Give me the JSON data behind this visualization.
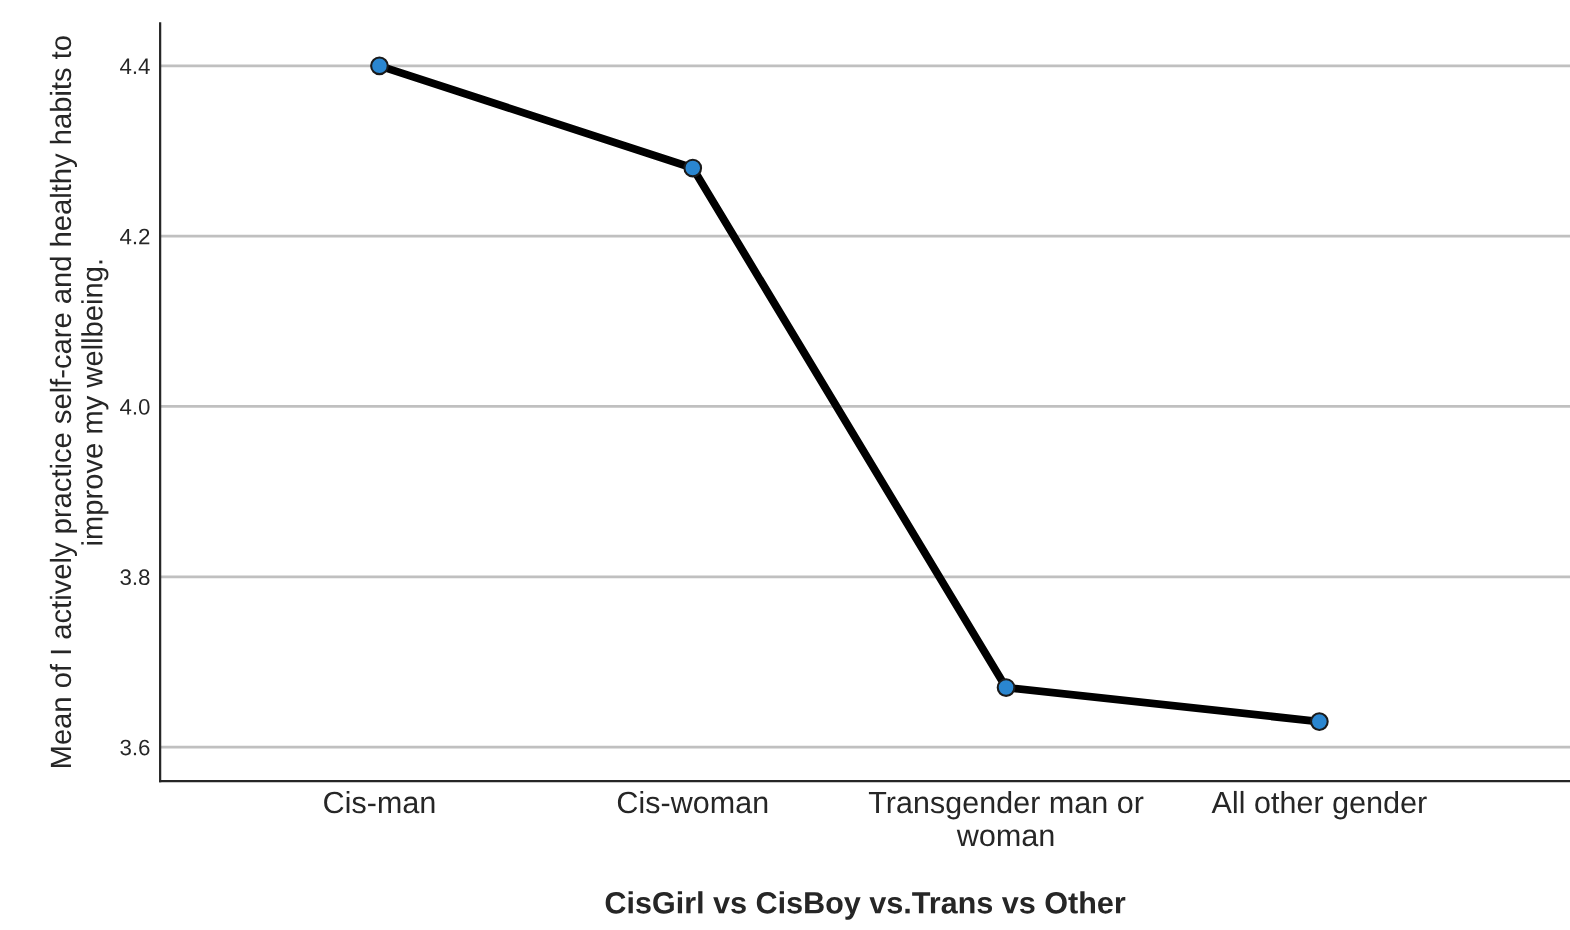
{
  "chart_data": {
    "type": "line",
    "xlabel": "CisGirl vs CisBoy vs.Trans vs Other",
    "ylabel": "Mean of I actively practice self-care and healthy habits to improve my wellbeing.",
    "categories": [
      "Cis-man",
      "Cis-woman",
      "Transgender man or woman",
      "All other gender"
    ],
    "series": [
      {
        "color": "#000000",
        "values": [
          4.4,
          4.28,
          3.67,
          3.63
        ]
      }
    ],
    "marker": "circle",
    "ylim": [
      3.56,
      4.45
    ],
    "yticks": [
      3.6,
      3.8,
      {
        "value": 4,
        "label": "4.0"
      },
      4.2,
      4.4
    ],
    "grid": "y"
  }
}
